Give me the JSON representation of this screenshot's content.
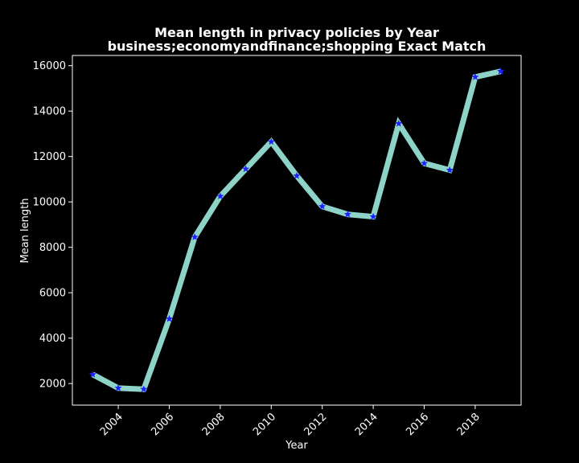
{
  "chart_data": {
    "type": "line",
    "title": "Mean length in privacy policies by Year",
    "subtitle": "business;economyandfinance;shopping Exact Match",
    "xlabel": "Year",
    "ylabel": "Mean length",
    "xlim": [
      2002.2,
      2019.8
    ],
    "ylim": [
      1050,
      16450
    ],
    "xticks": [
      2004,
      2006,
      2008,
      2010,
      2012,
      2014,
      2016,
      2018
    ],
    "yticks": [
      2000,
      4000,
      6000,
      8000,
      10000,
      12000,
      14000,
      16000
    ],
    "grid": false,
    "legend": "none",
    "series": [
      {
        "line_color": "#8dd3c7",
        "marker_color": "#1f1fff",
        "marker": "star",
        "points": [
          {
            "x": 2003,
            "y": 2400
          },
          {
            "x": 2004,
            "y": 1800
          },
          {
            "x": 2005,
            "y": 1750
          },
          {
            "x": 2006,
            "y": 4850
          },
          {
            "x": 2007,
            "y": 8450
          },
          {
            "x": 2008,
            "y": 10250
          },
          {
            "x": 2009,
            "y": 11450
          },
          {
            "x": 2010,
            "y": 12650
          },
          {
            "x": 2011,
            "y": 11150
          },
          {
            "x": 2012,
            "y": 9800
          },
          {
            "x": 2013,
            "y": 9450
          },
          {
            "x": 2014,
            "y": 9350
          },
          {
            "x": 2015,
            "y": 13450
          },
          {
            "x": 2016,
            "y": 11700
          },
          {
            "x": 2017,
            "y": 11400
          },
          {
            "x": 2018,
            "y": 15500
          },
          {
            "x": 2019,
            "y": 15750
          }
        ]
      }
    ]
  }
}
